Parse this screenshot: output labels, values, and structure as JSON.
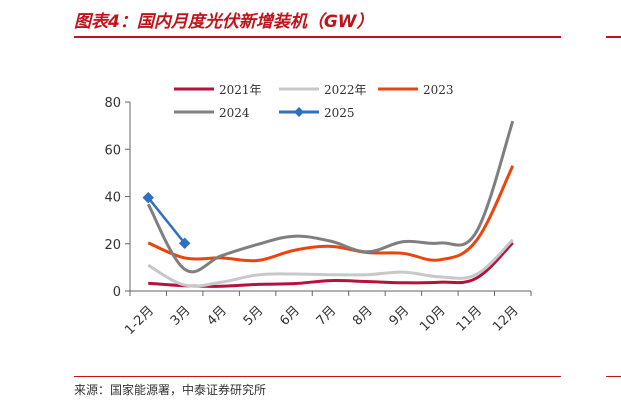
{
  "header": {
    "title": "图表4：国内月度光伏新增装机（GW）"
  },
  "footer": {
    "source": "来源：国家能源署，中泰证券研究所"
  },
  "chart_data": {
    "type": "line",
    "categories": [
      "1-2月",
      "3月",
      "4月",
      "5月",
      "6月",
      "7月",
      "8月",
      "9月",
      "10月",
      "11月",
      "12月"
    ],
    "ylim": [
      0,
      80
    ],
    "yticks": [
      0,
      20,
      40,
      60,
      80
    ],
    "grid": false,
    "legend_position": "top",
    "series": [
      {
        "name": "2021年",
        "color": "#b5123e",
        "values": [
          3.3,
          2.2,
          2.0,
          2.8,
          3.1,
          4.4,
          4.0,
          3.5,
          3.7,
          5.4,
          20.4
        ]
      },
      {
        "name": "2022年",
        "color": "#c8c8c8",
        "values": [
          10.9,
          2.5,
          3.7,
          6.8,
          7.2,
          6.9,
          6.9,
          8.0,
          6.0,
          7.0,
          21.7
        ]
      },
      {
        "name": "2023",
        "color": "#e8450f",
        "values": [
          20.4,
          14.0,
          14.0,
          12.9,
          17.2,
          18.9,
          16.3,
          15.9,
          13.2,
          21.3,
          53.0
        ]
      },
      {
        "name": "2024",
        "color": "#7f7f7f",
        "values": [
          36.7,
          9.2,
          14.9,
          19.7,
          23.2,
          21.1,
          16.6,
          20.9,
          20.3,
          25.0,
          71.9
        ]
      },
      {
        "name": "2025",
        "color": "#2f6fbf",
        "marker": "diamond",
        "values": [
          39.5,
          20.2,
          null,
          null,
          null,
          null,
          null,
          null,
          null,
          null,
          null
        ]
      }
    ]
  }
}
